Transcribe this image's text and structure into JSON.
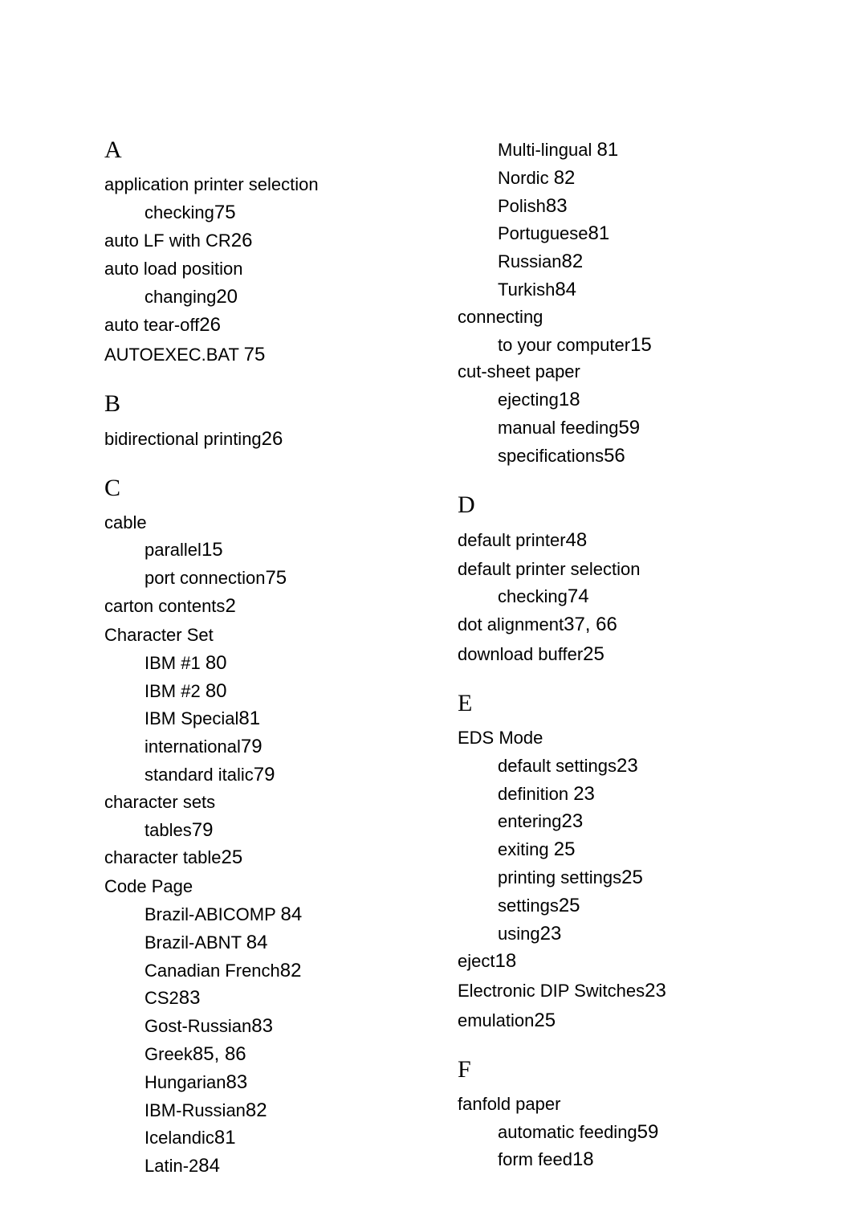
{
  "left": {
    "A": {
      "letter": "A",
      "entries": [
        {
          "main": "application printer selection",
          "subs": [
            {
              "label": "checking",
              "page": "75"
            }
          ]
        },
        {
          "main": "auto LF with CR",
          "page": "26"
        },
        {
          "main": "auto load position",
          "subs": [
            {
              "label": "changing",
              "page": "20"
            }
          ]
        },
        {
          "main": "auto tear-off",
          "page": "26"
        },
        {
          "main": "AUTOEXEC.BAT ",
          "page": "75"
        }
      ]
    },
    "B": {
      "letter": "B",
      "entries": [
        {
          "main": "bidirectional printing",
          "page": "26"
        }
      ]
    },
    "C": {
      "letter": "C",
      "entries": [
        {
          "main": "cable",
          "subs": [
            {
              "label": "parallel",
              "page": "15"
            },
            {
              "label": "port connection",
              "page": "75"
            }
          ]
        },
        {
          "main": "carton contents",
          "page": "2"
        },
        {
          "main": "Character Set",
          "subs": [
            {
              "label": "IBM #1 ",
              "page": "80"
            },
            {
              "label": "IBM #2 ",
              "page": "80"
            },
            {
              "label": "IBM Special",
              "page": "81"
            },
            {
              "label": "international",
              "page": "79"
            },
            {
              "label": "standard italic",
              "page": "79"
            }
          ]
        },
        {
          "main": "character sets",
          "subs": [
            {
              "label": "tables",
              "page": "79"
            }
          ]
        },
        {
          "main": "character table",
          "page": "25"
        },
        {
          "main": "Code Page",
          "subs": [
            {
              "label": "Brazil-ABICOMP ",
              "page": "84"
            },
            {
              "label": "Brazil-ABNT ",
              "page": "84"
            },
            {
              "label": "Canadian French",
              "page": "82"
            },
            {
              "label": "CS2",
              "page": "83"
            },
            {
              "label": "Gost-Russian",
              "page": "83"
            },
            {
              "label": "Greek",
              "page": "85, 86"
            },
            {
              "label": "Hungarian",
              "page": "83"
            },
            {
              "label": "IBM-Russian",
              "page": "82"
            },
            {
              "label": "Icelandic",
              "page": "81"
            },
            {
              "label": "Latin-2",
              "page": "84"
            }
          ]
        }
      ]
    }
  },
  "right": {
    "cont": {
      "subs": [
        {
          "label": "Multi-lingual ",
          "page": "81"
        },
        {
          "label": "Nordic ",
          "page": "82"
        },
        {
          "label": "Polish",
          "page": "83"
        },
        {
          "label": "Portuguese",
          "page": "81"
        },
        {
          "label": "Russian",
          "page": "82"
        },
        {
          "label": "Turkish",
          "page": "84"
        }
      ],
      "entries": [
        {
          "main": "connecting",
          "subs": [
            {
              "label": "to your computer",
              "page": "15"
            }
          ]
        },
        {
          "main": "cut-sheet paper",
          "subs": [
            {
              "label": "ejecting",
              "page": "18"
            },
            {
              "label": "manual feeding",
              "page": "59"
            },
            {
              "label": "specifications",
              "page": "56"
            }
          ]
        }
      ]
    },
    "D": {
      "letter": "D",
      "entries": [
        {
          "main": "default printer",
          "page": "48"
        },
        {
          "main": "default printer selection",
          "subs": [
            {
              "label": "checking",
              "page": "74"
            }
          ]
        },
        {
          "main": "dot alignment",
          "page": "37, 66"
        },
        {
          "main": "download buffer",
          "page": "25"
        }
      ]
    },
    "E": {
      "letter": "E",
      "entries": [
        {
          "main": "EDS Mode",
          "subs": [
            {
              "label": "default settings",
              "page": "23"
            },
            {
              "label": "definition ",
              "page": "23"
            },
            {
              "label": "entering",
              "page": "23"
            },
            {
              "label": "exiting ",
              "page": "25"
            },
            {
              "label": "printing settings",
              "page": "25"
            },
            {
              "label": "settings",
              "page": "25"
            },
            {
              "label": "using",
              "page": "23"
            }
          ]
        },
        {
          "main": "eject",
          "page": "18"
        },
        {
          "main": "Electronic DIP Switches",
          "page": "23"
        },
        {
          "main": "emulation",
          "page": "25"
        }
      ]
    },
    "F": {
      "letter": "F",
      "entries": [
        {
          "main": "fanfold paper",
          "subs": [
            {
              "label": "automatic feeding",
              "page": "59"
            },
            {
              "label": "form feed",
              "page": "18"
            }
          ]
        }
      ]
    }
  },
  "style": {
    "background": "#ffffff",
    "text_color": "#000000",
    "body_fontsize": 22,
    "page_fontsize": 24,
    "letter_fontsize": 30
  }
}
